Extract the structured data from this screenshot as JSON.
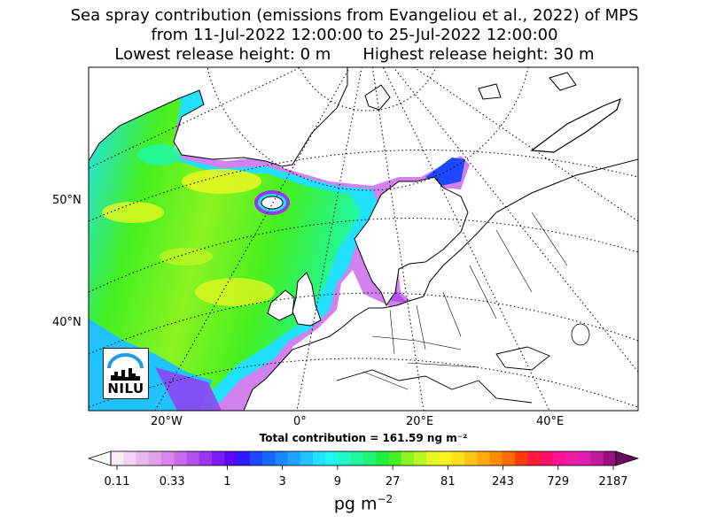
{
  "title": {
    "line1": "Sea spray contribution (emissions from Evangeliou et al., 2022) of MPS",
    "line2": "from 11-Jul-2022 12:00:00 to 25-Jul-2022 12:00:00",
    "lowest_label": "Lowest release height: 0 m",
    "highest_label": "Highest release height: 30 m"
  },
  "map": {
    "lat_labels": [
      "50°N",
      "40°N"
    ],
    "lon_labels": [
      "20°W",
      "0°",
      "20°E",
      "40°E"
    ],
    "logo_text": "NILU",
    "total_text": "Total contribution = 161.59 ng m⁻²"
  },
  "colorbar": {
    "tick_labels": [
      "0.11",
      "0.33",
      "1",
      "3",
      "9",
      "27",
      "81",
      "243",
      "729",
      "2187"
    ],
    "units": "pg m",
    "units_exp": "−2",
    "colors": [
      "#fbeaf8",
      "#f3d2f3",
      "#ebb8ef",
      "#e39fec",
      "#d985ea",
      "#c96cec",
      "#b351ee",
      "#9b35f2",
      "#7e1cf5",
      "#5a08f9",
      "#2f1cfd",
      "#1e48ff",
      "#1568ff",
      "#1a86ff",
      "#1ea4ff",
      "#20c2ff",
      "#22e0ff",
      "#21f6ee",
      "#21f7c9",
      "#22f79f",
      "#20f578",
      "#22ee3c",
      "#43f021",
      "#8bf321",
      "#bbf522",
      "#e9f721",
      "#f8f220",
      "#ffde1c",
      "#ffc415",
      "#ffa90e",
      "#ff8c07",
      "#ff6a05",
      "#ff3c0b",
      "#ff1c3a",
      "#ff0e6a",
      "#ff1293",
      "#f01ca8",
      "#df1fae",
      "#c11b9d",
      "#9a107f"
    ]
  }
}
